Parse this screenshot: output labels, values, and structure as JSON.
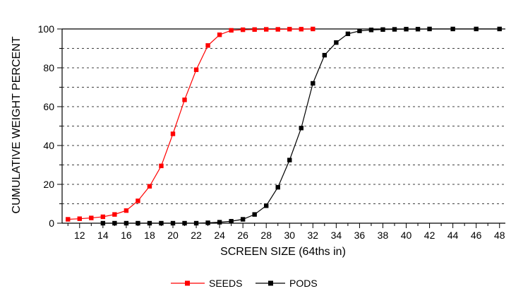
{
  "chart_data": {
    "type": "line",
    "title": "",
    "xlabel": "SCREEN SIZE (64ths in)",
    "ylabel": "CUMULATIVE WEIGHT PERCENT",
    "xlim": [
      10.5,
      48.5
    ],
    "ylim": [
      0,
      100
    ],
    "x_ticks": [
      12,
      14,
      16,
      18,
      20,
      22,
      24,
      26,
      28,
      30,
      32,
      34,
      36,
      38,
      40,
      42,
      44,
      46,
      48
    ],
    "y_ticks": [
      0,
      20,
      40,
      60,
      80,
      100
    ],
    "grid": "horizontal dashed",
    "legend_position": "bottom-center",
    "series": [
      {
        "name": "SEEDS",
        "color": "#ff0000",
        "marker": "square",
        "x": [
          11,
          12,
          13,
          14,
          15,
          16,
          17,
          18,
          19,
          20,
          21,
          22,
          23,
          24,
          25,
          26,
          27,
          28,
          29,
          30,
          31,
          32
        ],
        "y": [
          2,
          2.3,
          2.7,
          3.3,
          4.5,
          6.5,
          11.5,
          19,
          29.5,
          46,
          63.5,
          79,
          91.5,
          97,
          99.3,
          99.6,
          99.7,
          99.8,
          99.8,
          99.9,
          99.9,
          100
        ]
      },
      {
        "name": "PODS",
        "color": "#000000",
        "marker": "square",
        "x": [
          14,
          15,
          16,
          17,
          18,
          19,
          20,
          21,
          22,
          23,
          24,
          25,
          26,
          27,
          28,
          29,
          30,
          31,
          32,
          33,
          34,
          35,
          36,
          37,
          38,
          39,
          40,
          41,
          42,
          44,
          46,
          48
        ],
        "y": [
          0,
          0,
          0,
          0,
          0,
          0,
          0,
          0,
          0,
          0.2,
          0.5,
          1,
          2,
          4.5,
          9,
          18.5,
          32.5,
          49,
          72,
          86.5,
          93,
          97.5,
          99,
          99.5,
          99.7,
          99.8,
          99.9,
          99.9,
          100,
          100,
          100,
          100
        ]
      }
    ]
  }
}
